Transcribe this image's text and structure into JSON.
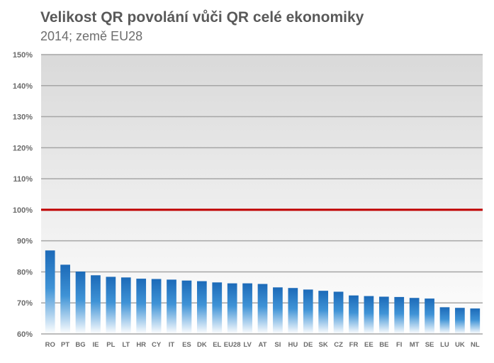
{
  "title": "Velikost QR povolání vůči QR celé ekonomiky",
  "subtitle": "2014; země EU28",
  "colors": {
    "bar_top": "#1c6ab8",
    "bar_bottom": "#ffffff",
    "reference_line": "#c00000",
    "plot_bg_top": "#d9d9d9",
    "plot_bg_bottom": "#ffffff",
    "gridline": "#a6a6a6"
  },
  "chart_data": {
    "type": "bar",
    "title": "Velikost QR povolání vůči QR celé ekonomiky",
    "subtitle": "2014; země EU28",
    "xlabel": "",
    "ylabel": "",
    "ylim": [
      60,
      150
    ],
    "y_unit": "%",
    "y_ticks": [
      "60%",
      "70%",
      "80%",
      "90%",
      "100%",
      "110%",
      "120%",
      "130%",
      "140%",
      "150%"
    ],
    "grid": true,
    "reference_line": 100,
    "categories": [
      "RO",
      "PT",
      "BG",
      "IE",
      "PL",
      "LT",
      "HR",
      "CY",
      "IT",
      "ES",
      "DK",
      "EL",
      "EU28",
      "LV",
      "AT",
      "SI",
      "HU",
      "DE",
      "SK",
      "CZ",
      "FR",
      "EE",
      "BE",
      "FI",
      "MT",
      "SE",
      "LU",
      "UK",
      "NL"
    ],
    "values": [
      86.9,
      82.3,
      80.1,
      78.9,
      78.4,
      78.2,
      77.8,
      77.7,
      77.5,
      77.2,
      77.0,
      76.6,
      76.3,
      76.3,
      76.1,
      75.0,
      74.8,
      74.3,
      73.9,
      73.6,
      72.4,
      72.2,
      72.0,
      71.9,
      71.6,
      71.4,
      68.6,
      68.4,
      68.2
    ]
  }
}
